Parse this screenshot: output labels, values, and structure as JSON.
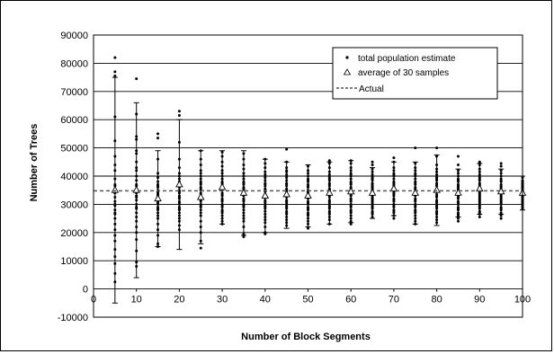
{
  "chart_data": {
    "type": "scatter",
    "title": "",
    "xlabel": "Number of Block Segments",
    "ylabel": "Number of Trees",
    "xlim": [
      0,
      100
    ],
    "ylim": [
      -10000,
      90000
    ],
    "x_ticks": [
      "0",
      "10",
      "20",
      "30",
      "40",
      "50",
      "60",
      "70",
      "80",
      "90",
      "100"
    ],
    "y_ticks": [
      "90000",
      "80000",
      "70000",
      "60000",
      "50000",
      "40000",
      "30000",
      "20000",
      "10000",
      "0",
      "-10000"
    ],
    "grid": "horizontal",
    "legend_position": "top-right",
    "legend": {
      "estimate_label": "total population estimate",
      "average_label": "average of 30 samples",
      "actual_label": "Actual"
    },
    "actual_value": 34800,
    "colors": {
      "points": "#000000",
      "grid": "#000000",
      "actual": "#555555"
    },
    "series": [
      {
        "name": "total population estimate",
        "points": [
          {
            "x": 5,
            "ys": [
              82000,
              77000,
              75500,
              61000,
              52500,
              47000,
              42000,
              39000,
              37000,
              35500,
              34000,
              32500,
              31000,
              29500,
              28000,
              26500,
              25000,
              23000,
              21000,
              19000,
              17000,
              14000,
              11500,
              9000,
              5500,
              2500,
              44000,
              36500,
              30000,
              27000
            ]
          },
          {
            "x": 10,
            "ys": [
              74500,
              62000,
              54000,
              53000,
              48000,
              45000,
              42000,
              40000,
              38500,
              37000,
              35500,
              34000,
              33000,
              31500,
              30000,
              28500,
              27000,
              25500,
              24000,
              22000,
              20000,
              17500,
              13500,
              9500,
              8000,
              49000,
              43000,
              36500,
              32500,
              29000
            ]
          },
          {
            "x": 15,
            "ys": [
              55000,
              53500,
              46000,
              41000,
              39500,
              38000,
              37000,
              36000,
              35000,
              34000,
              33000,
              32000,
              31000,
              30000,
              29000,
              28000,
              27000,
              26000,
              25000,
              23000,
              21000,
              19000,
              16000,
              15000,
              36500,
              34500,
              33500,
              31500,
              30500,
              28500
            ]
          },
          {
            "x": 20,
            "ys": [
              63000,
              61500,
              52000,
              46000,
              43000,
              41000,
              40000,
              39000,
              38000,
              37000,
              36000,
              35000,
              34000,
              33000,
              32000,
              31000,
              30000,
              29000,
              28000,
              27000,
              25000,
              24000,
              22500,
              21000,
              36500,
              34500,
              32500,
              30500,
              28500,
              26000
            ]
          },
          {
            "x": 25,
            "ys": [
              49000,
              46000,
              44000,
              42000,
              41000,
              40000,
              39000,
              38000,
              37000,
              36000,
              35000,
              34000,
              33000,
              32000,
              31000,
              30000,
              29000,
              28000,
              27000,
              26000,
              24000,
              22000,
              20000,
              17000,
              14500,
              37500,
              35500,
              33500,
              31500,
              29500
            ]
          },
          {
            "x": 30,
            "ys": [
              48500,
              47000,
              45000,
              43500,
              42000,
              41000,
              40000,
              39000,
              38000,
              37000,
              36000,
              35000,
              34000,
              33000,
              32000,
              31000,
              30000,
              29000,
              28000,
              27000,
              26000,
              25000,
              24000,
              23000,
              37500,
              35500,
              33500,
              31500,
              29500,
              27500
            ]
          },
          {
            "x": 35,
            "ys": [
              48000,
              46000,
              44000,
              42500,
              41000,
              40000,
              39000,
              38000,
              37000,
              36000,
              35000,
              34000,
              33000,
              32000,
              31000,
              30000,
              29000,
              28000,
              27000,
              26000,
              25000,
              24000,
              22000,
              19500,
              18500,
              37500,
              35500,
              33500,
              31500,
              29500
            ]
          },
          {
            "x": 40,
            "ys": [
              46000,
              44500,
              43000,
              41500,
              40500,
              39500,
              38500,
              37500,
              36500,
              35500,
              34500,
              33500,
              32500,
              31500,
              30500,
              29500,
              28500,
              27500,
              26500,
              25500,
              24500,
              23500,
              22000,
              20000,
              19500,
              37000,
              35000,
              33000,
              31000,
              29000
            ]
          },
          {
            "x": 45,
            "ys": [
              49500,
              45000,
              43000,
              41500,
              40500,
              39500,
              38500,
              37500,
              36500,
              35500,
              34500,
              33500,
              32500,
              31500,
              30500,
              29500,
              28500,
              27500,
              26500,
              25500,
              24500,
              23500,
              22500,
              37000,
              35000,
              33000,
              31000,
              29000,
              27000,
              42000
            ]
          },
          {
            "x": 50,
            "ys": [
              43500,
              42000,
              41000,
              40000,
              39000,
              38000,
              37000,
              36000,
              35000,
              34000,
              33000,
              32000,
              31000,
              30000,
              29000,
              28000,
              27000,
              26000,
              25000,
              24000,
              23000,
              21500,
              36500,
              34500,
              32500,
              30500,
              28500,
              26500,
              38500,
              33500
            ]
          },
          {
            "x": 55,
            "ys": [
              45500,
              44500,
              43000,
              41500,
              40500,
              39500,
              38500,
              37500,
              36500,
              35500,
              34500,
              33500,
              32500,
              31500,
              30500,
              29500,
              28500,
              27500,
              26500,
              25500,
              24500,
              23000,
              37000,
              35000,
              33000,
              31000,
              29000,
              27000,
              39000,
              35500
            ]
          },
          {
            "x": 60,
            "ys": [
              45500,
              44500,
              43000,
              42000,
              41000,
              40000,
              39000,
              38000,
              37000,
              36000,
              35000,
              34000,
              33000,
              32000,
              31000,
              30000,
              29000,
              28000,
              27000,
              26000,
              25000,
              24000,
              23000,
              37500,
              35500,
              33500,
              31500,
              29500,
              27500,
              40500
            ]
          },
          {
            "x": 65,
            "ys": [
              45000,
              44000,
              42500,
              41500,
              40500,
              39500,
              38500,
              37500,
              36500,
              35500,
              34500,
              33500,
              32500,
              31500,
              30500,
              29500,
              28500,
              27500,
              26500,
              25500,
              37000,
              35000,
              33000,
              31000,
              29000,
              27000,
              39000,
              36000,
              34000,
              32000
            ]
          },
          {
            "x": 70,
            "ys": [
              46500,
              45000,
              43000,
              42000,
              41000,
              40000,
              39000,
              38000,
              37000,
              36000,
              35000,
              34000,
              33000,
              32000,
              31000,
              30000,
              29000,
              28000,
              27000,
              26000,
              25000,
              37500,
              35500,
              33500,
              31500,
              29500,
              27500,
              40500,
              36500,
              34500
            ]
          },
          {
            "x": 75,
            "ys": [
              50000,
              44500,
              43000,
              42000,
              41000,
              40000,
              39000,
              38000,
              37000,
              36000,
              35000,
              34000,
              33000,
              32000,
              31000,
              30000,
              29000,
              28000,
              27000,
              26000,
              25000,
              24000,
              23000,
              37500,
              35500,
              33500,
              31500,
              29500,
              27500,
              40500
            ]
          },
          {
            "x": 80,
            "ys": [
              50000,
              47000,
              44000,
              42500,
              41500,
              40500,
              39500,
              38500,
              37500,
              36500,
              35500,
              34500,
              33500,
              32500,
              31500,
              30500,
              29500,
              28500,
              27500,
              26500,
              25500,
              24500,
              23500,
              37000,
              35000,
              33000,
              31000,
              29000,
              27000,
              39000
            ]
          },
          {
            "x": 85,
            "ys": [
              47000,
              44000,
              42000,
              41000,
              40000,
              39000,
              38000,
              37000,
              36000,
              35000,
              34000,
              33000,
              32000,
              31000,
              30000,
              29000,
              28000,
              27000,
              26000,
              25000,
              24000,
              36500,
              34500,
              32500,
              30500,
              28500,
              26500,
              38500,
              35500,
              33500
            ]
          },
          {
            "x": 90,
            "ys": [
              45000,
              44000,
              42500,
              41500,
              40500,
              39500,
              38500,
              37500,
              36500,
              35500,
              34500,
              33500,
              32500,
              31500,
              30500,
              29500,
              28500,
              27500,
              26500,
              25500,
              37000,
              35000,
              33000,
              31000,
              29000,
              27000,
              39000,
              36000,
              34000,
              32000
            ]
          },
          {
            "x": 95,
            "ys": [
              44500,
              43500,
              42000,
              41000,
              40000,
              39000,
              38000,
              37000,
              36000,
              35000,
              34000,
              33000,
              32000,
              31000,
              30000,
              29000,
              28000,
              27000,
              26000,
              25000,
              36500,
              34500,
              32500,
              30500,
              28500,
              26500,
              38500,
              35500,
              33500,
              31500
            ]
          },
          {
            "x": 100,
            "ys": [
              39500,
              38500,
              37500,
              36500,
              35500,
              34500,
              33500,
              32500,
              31500,
              30500,
              29500,
              28500,
              36000,
              34000,
              32000,
              30000,
              29000,
              37000,
              35000,
              33000,
              31000,
              38000,
              36500,
              34500,
              32500,
              30500,
              33000,
              35500,
              31500,
              34000
            ]
          }
        ]
      },
      {
        "name": "average of 30 samples",
        "points": [
          {
            "x": 5,
            "y": 35000,
            "err_low": -5000,
            "err_high": 75000
          },
          {
            "x": 10,
            "y": 35000,
            "err_low": 4000,
            "err_high": 66000
          },
          {
            "x": 15,
            "y": 32000,
            "err_low": 15000,
            "err_high": 49000
          },
          {
            "x": 20,
            "y": 37000,
            "err_low": 14000,
            "err_high": 60000
          },
          {
            "x": 25,
            "y": 32500,
            "err_low": 16000,
            "err_high": 49000
          },
          {
            "x": 30,
            "y": 36000,
            "err_low": 23000,
            "err_high": 49000
          },
          {
            "x": 35,
            "y": 34000,
            "err_low": 19000,
            "err_high": 49000
          },
          {
            "x": 40,
            "y": 33000,
            "err_low": 20000,
            "err_high": 46000
          },
          {
            "x": 45,
            "y": 33500,
            "err_low": 21500,
            "err_high": 45000
          },
          {
            "x": 50,
            "y": 33000,
            "err_low": 22000,
            "err_high": 44000
          },
          {
            "x": 55,
            "y": 34000,
            "err_low": 23000,
            "err_high": 45000
          },
          {
            "x": 60,
            "y": 34500,
            "err_low": 23500,
            "err_high": 45500
          },
          {
            "x": 65,
            "y": 34000,
            "err_low": 25000,
            "err_high": 43000
          },
          {
            "x": 70,
            "y": 35500,
            "err_low": 26000,
            "err_high": 45000
          },
          {
            "x": 75,
            "y": 34000,
            "err_low": 23000,
            "err_high": 45000
          },
          {
            "x": 80,
            "y": 35000,
            "err_low": 22500,
            "err_high": 47500
          },
          {
            "x": 85,
            "y": 34000,
            "err_low": 25500,
            "err_high": 42500
          },
          {
            "x": 90,
            "y": 35500,
            "err_low": 26500,
            "err_high": 44500
          },
          {
            "x": 95,
            "y": 34500,
            "err_low": 26500,
            "err_high": 42500
          },
          {
            "x": 100,
            "y": 34000,
            "err_low": 28000,
            "err_high": 40000
          }
        ]
      }
    ]
  }
}
